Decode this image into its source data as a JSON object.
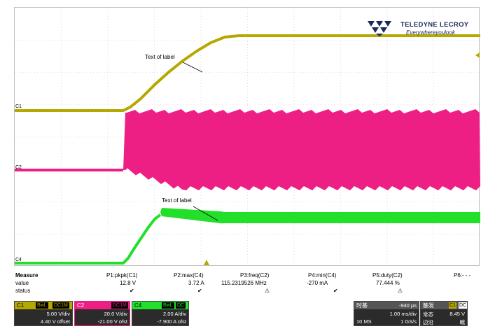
{
  "brand": {
    "name": "TELEDYNE LECROY",
    "tagline": "Everywhereyoulook"
  },
  "colors": {
    "c1": "#b5a800",
    "c2": "#ee1f84",
    "c4": "#22e02a",
    "grid": "#c8c8c8"
  },
  "traces": {
    "c1_marker": "C1",
    "c2_marker": "C2",
    "c4_marker": "C4",
    "label_c1": "Text of label",
    "label_c4": "Text of label"
  },
  "measure": {
    "title": "Measure",
    "row_value": "value",
    "row_status": "status",
    "params": [
      {
        "name": "P1:pkpk(C1)",
        "value": "12.8 V",
        "status": "✔"
      },
      {
        "name": "P2:max(C4)",
        "value": "3.72 A",
        "status": "✔"
      },
      {
        "name": "P3:freq(C2)",
        "value": "115.2319526 MHz",
        "status": "⚠"
      },
      {
        "name": "P4:min(C4)",
        "value": "-270 mA",
        "status": "✔"
      },
      {
        "name": "P5:duty(C2)",
        "value": "77.444 %",
        "status": "⚠"
      },
      {
        "name": "P6:- - -",
        "value": "",
        "status": ""
      }
    ]
  },
  "channels": {
    "c1": {
      "name": "C1",
      "tags": [
        "BwL",
        "DC1M"
      ],
      "scale": "5.00 V/div",
      "offset": "4.40 V offset"
    },
    "c2": {
      "name": "C2",
      "tags": [
        "DC1M"
      ],
      "scale": "20.0 V/div",
      "offset": "-21.00 V ofst"
    },
    "c4": {
      "name": "C4",
      "tags": [
        "BwL",
        "DC"
      ],
      "scale": "2.00 A/div",
      "offset": "-7.900 A ofst"
    }
  },
  "timebase": {
    "label": "时基",
    "delay": "-940 µs",
    "scale": "1.00 ms/div",
    "samples": "10 MS",
    "rate": "1 GS/s"
  },
  "trigger": {
    "label": "触发",
    "source": "C1",
    "coupling": "DC",
    "mode": "常态",
    "edge": "边沿",
    "level": "8.45 V",
    "slope": "戰"
  }
}
